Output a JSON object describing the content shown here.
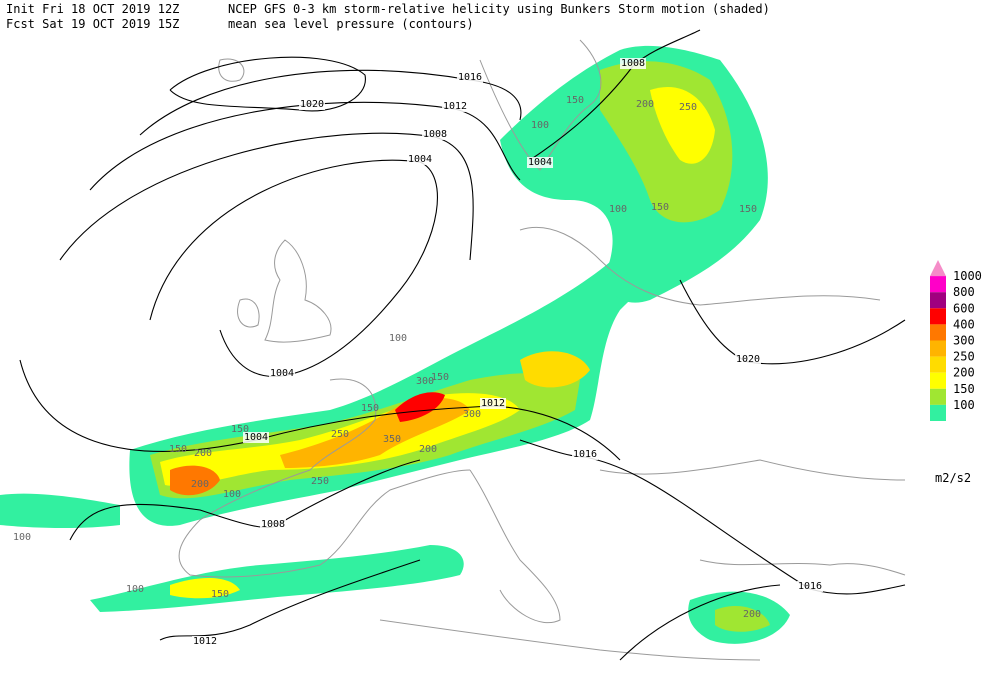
{
  "header": {
    "init": "Init  Fri 18 OCT 2019 12Z",
    "fcst": "Fcst Sat 19 OCT 2019 15Z",
    "title": "NCEP GFS 0-3 km storm-relative helicity using Bunkers Storm motion (shaded)",
    "subtitle": "mean sea level pressure (contours)"
  },
  "legend": {
    "levels": [
      1000,
      800,
      600,
      400,
      300,
      250,
      200,
      150,
      100
    ],
    "colors": [
      "#f58cc8",
      "#ff00c8",
      "#a0007f",
      "#ff0000",
      "#ff7800",
      "#ffb400",
      "#ffdc00",
      "#ffff00",
      "#a0e632",
      "#32f0a0"
    ],
    "units": "m2/s2"
  },
  "isobar_labels": [
    "1020",
    "1016",
    "1012",
    "1008",
    "1004",
    "1004",
    "1008",
    "1004",
    "1004",
    "1012",
    "1016",
    "1020",
    "1008",
    "1012",
    "1016"
  ],
  "shading_labels": [
    "100",
    "150",
    "200",
    "100",
    "150",
    "200",
    "150",
    "100",
    "150",
    "300",
    "300",
    "250",
    "350",
    "200",
    "250",
    "200",
    "150",
    "100",
    "150",
    "100",
    "150",
    "250",
    "100",
    "150",
    "200"
  ]
}
